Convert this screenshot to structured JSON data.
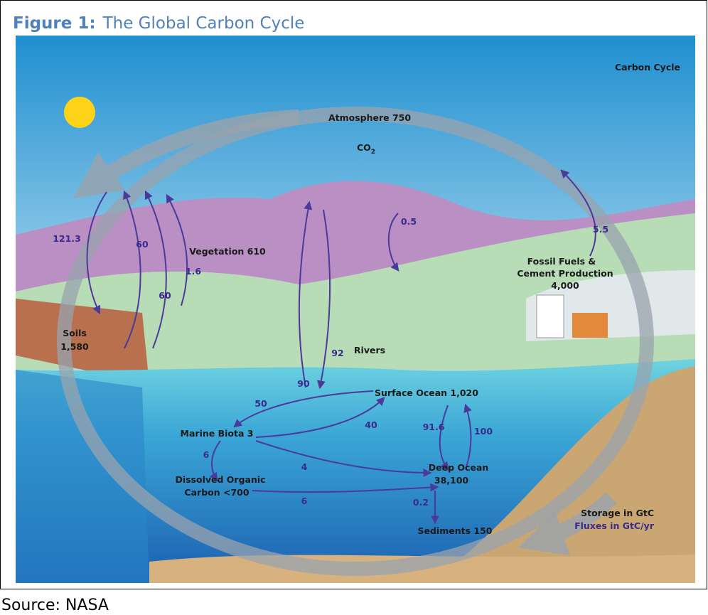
{
  "figure": {
    "label": "Figure 1:",
    "title": "The Global Carbon Cycle"
  },
  "diagram": {
    "title": "Carbon Cycle",
    "co2": {
      "text": "CO",
      "subscript": "2"
    },
    "pools": [
      {
        "lines": [
          "Atmosphere 750"
        ]
      },
      {
        "lines": [
          "Vegetation 610"
        ]
      },
      {
        "lines": [
          "Soils",
          "1,580"
        ]
      },
      {
        "lines": [
          "Fossil Fuels &",
          "Cement Production",
          "4,000"
        ]
      },
      {
        "lines": [
          "Rivers"
        ]
      },
      {
        "lines": [
          "Surface Ocean 1,020"
        ]
      },
      {
        "lines": [
          "Marine Biota 3"
        ]
      },
      {
        "lines": [
          "Dissolved Organic",
          "Carbon <700"
        ]
      },
      {
        "lines": [
          "Deep Ocean",
          "38,100"
        ]
      },
      {
        "lines": [
          "Sediments 150"
        ]
      }
    ],
    "fluxes": [
      "121.3",
      "60",
      "60",
      "1.6",
      "90",
      "92",
      "0.5",
      "5.5",
      "50",
      "40",
      "91.6",
      "100",
      "6",
      "4",
      "6",
      "0.2"
    ],
    "legend": {
      "storage": "Storage in GtC",
      "fluxes": "Fluxes in GtC/yr"
    }
  },
  "source": "Source: NASA"
}
